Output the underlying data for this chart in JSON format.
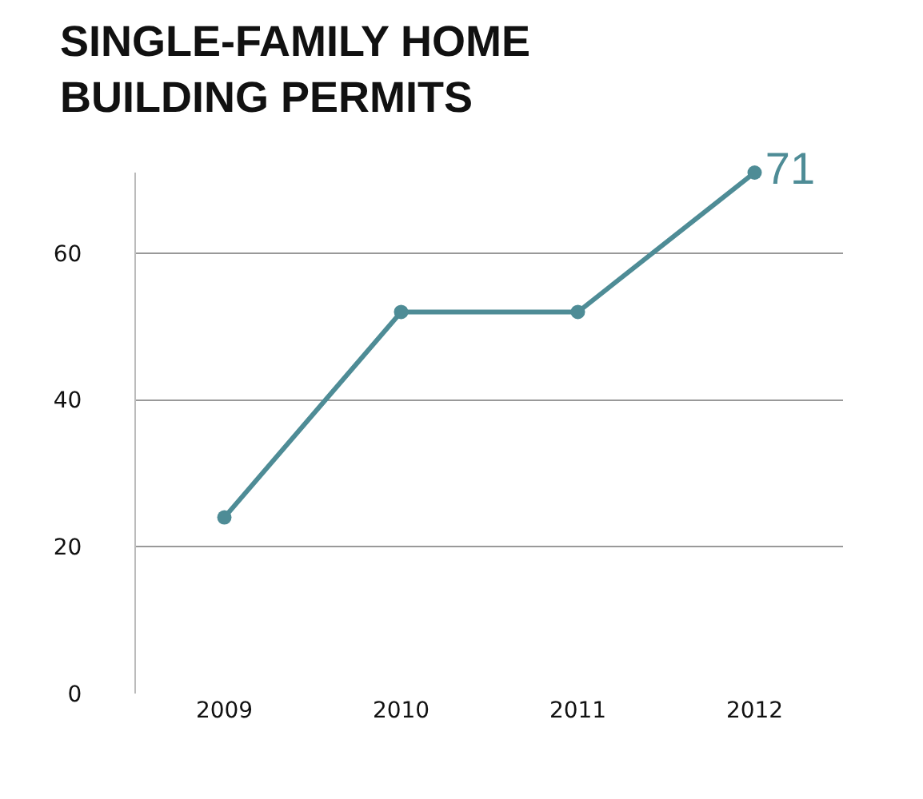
{
  "chart_data": {
    "type": "line",
    "title": "SINGLE-FAMILY HOME\nBUILDING PERMITS",
    "categories": [
      "2009",
      "2010",
      "2011",
      "2012"
    ],
    "series": [
      {
        "color": "#4e8c96",
        "values": [
          24,
          52,
          52,
          71
        ],
        "value_labels": [
          null,
          null,
          null,
          "71"
        ]
      }
    ],
    "ylim": [
      0,
      71
    ],
    "yticks": [
      0,
      20,
      40,
      60
    ],
    "grid": "y",
    "marker": "circle",
    "line_style": "solid"
  }
}
